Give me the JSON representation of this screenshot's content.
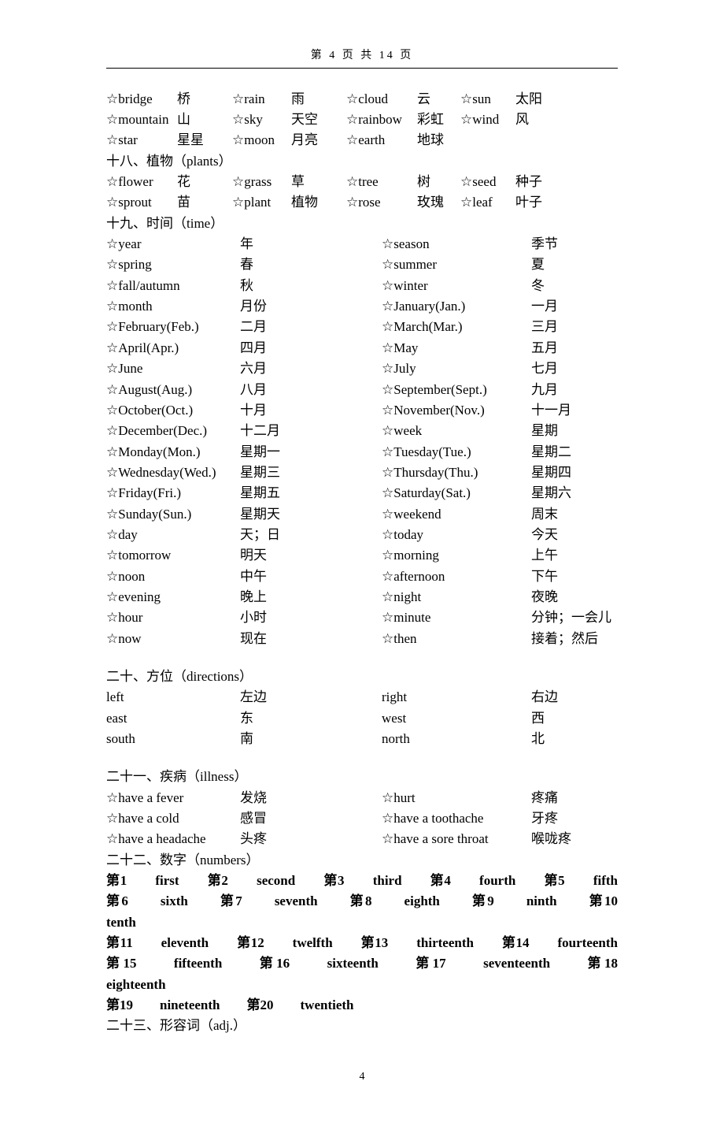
{
  "header": "第 4 页 共 14 页",
  "footer": "4",
  "nature": [
    {
      "en": "☆bridge",
      "zh": "桥",
      "en2": "☆rain",
      "zh2": "雨",
      "en3": "☆cloud",
      "zh3": "云",
      "en4": "☆sun",
      "zh4": "太阳"
    },
    {
      "en": "☆mountain",
      "zh": "山",
      "en2": "☆sky",
      "zh2": "天空",
      "en3": "☆rainbow",
      "zh3": "彩虹",
      "en4": "☆wind",
      "zh4": "风"
    },
    {
      "en": "☆star",
      "zh": "星星",
      "en2": "☆moon",
      "zh2": "月亮",
      "en3": "☆earth",
      "zh3": "地球",
      "en4": "",
      "zh4": ""
    }
  ],
  "section18_title": "十八、植物（plants）",
  "plants": [
    {
      "en": "☆flower",
      "zh": "花",
      "en2": "☆grass",
      "zh2": "草",
      "en3": "☆tree",
      "zh3": "树",
      "en4": "☆seed",
      "zh4": "种子"
    },
    {
      "en": "☆sprout",
      "zh": "苗",
      "en2": "☆plant",
      "zh2": "植物",
      "en3": "☆rose",
      "zh3": "玫瑰",
      "en4": "☆leaf",
      "zh4": "叶子"
    }
  ],
  "section19_title": "十九、时间（time）",
  "time": [
    {
      "l_en": "☆year",
      "l_zh": "年",
      "r_en": "☆season",
      "r_zh": "季节"
    },
    {
      "l_en": "☆spring",
      "l_zh": "春",
      "r_en": "☆summer",
      "r_zh": "夏"
    },
    {
      "l_en": "☆fall/autumn",
      "l_zh": "秋",
      "r_en": "☆winter",
      "r_zh": "冬"
    },
    {
      "l_en": "☆month",
      "l_zh": "月份",
      "r_en": "☆January(Jan.)",
      "r_zh": "一月"
    },
    {
      "l_en": "☆February(Feb.)",
      "l_zh": "二月",
      "r_en": "☆March(Mar.)",
      "r_zh": "三月"
    },
    {
      "l_en": "☆April(Apr.)",
      "l_zh": "四月",
      "r_en": "☆May",
      "r_zh": "五月"
    },
    {
      "l_en": "☆June",
      "l_zh": "六月",
      "r_en": "☆July",
      "r_zh": "七月"
    },
    {
      "l_en": "☆August(Aug.)",
      "l_zh": "八月",
      "r_en": "☆September(Sept.)",
      "r_zh": "九月"
    },
    {
      "l_en": "☆October(Oct.)",
      "l_zh": "十月",
      "r_en": "☆November(Nov.)",
      "r_zh": "十一月"
    },
    {
      "l_en": "☆December(Dec.)",
      "l_zh": "十二月",
      "r_en": "☆week",
      "r_zh": "星期"
    },
    {
      "l_en": "☆Monday(Mon.)",
      "l_zh": "星期一",
      "r_en": "☆Tuesday(Tue.)",
      "r_zh": "星期二"
    },
    {
      "l_en": "☆Wednesday(Wed.)",
      "l_zh": "星期三",
      "r_en": "☆Thursday(Thu.)",
      "r_zh": "星期四"
    },
    {
      "l_en": "☆Friday(Fri.)",
      "l_zh": "星期五",
      "r_en": "☆Saturday(Sat.)",
      "r_zh": "星期六"
    },
    {
      "l_en": "☆Sunday(Sun.)",
      "l_zh": "星期天",
      "r_en": "☆weekend",
      "r_zh": "周末"
    },
    {
      "l_en": "☆day",
      "l_zh": "天；日",
      "r_en": "☆today",
      "r_zh": "今天"
    },
    {
      "l_en": "☆tomorrow",
      "l_zh": "明天",
      "r_en": "☆morning",
      "r_zh": "上午"
    },
    {
      "l_en": "☆noon",
      "l_zh": "中午",
      "r_en": "☆afternoon",
      "r_zh": "下午"
    },
    {
      "l_en": "☆evening",
      "l_zh": "晚上",
      "r_en": "☆night",
      "r_zh": "夜晚"
    },
    {
      "l_en": "☆hour",
      "l_zh": "小时",
      "r_en": "☆minute",
      "r_zh": "分钟；一会儿"
    },
    {
      "l_en": "☆now",
      "l_zh": "现在",
      "r_en": "☆then",
      "r_zh": "接着；然后"
    }
  ],
  "section20_title": "二十、方位（directions）",
  "directions": [
    {
      "l_en": "left",
      "l_zh": "左边",
      "r_en": "right",
      "r_zh": "右边"
    },
    {
      "l_en": "east",
      "l_zh": "东",
      "r_en": "west",
      "r_zh": "西"
    },
    {
      "l_en": "south",
      "l_zh": "南",
      "r_en": "north",
      "r_zh": "北"
    }
  ],
  "section21_title": "二十一、疾病（illness）",
  "illness": [
    {
      "l_en": "☆have a fever",
      "l_zh": "发烧",
      "r_en": "☆hurt",
      "r_zh": "疼痛"
    },
    {
      "l_en": "☆have a cold",
      "l_zh": "感冒",
      "r_en": "☆have a toothache",
      "r_zh": "牙疼"
    },
    {
      "l_en": "☆have a headache",
      "l_zh": "头疼",
      "r_en": "☆have a sore throat",
      "r_zh": "喉咙疼"
    }
  ],
  "section22_title": "二十二、数字（numbers）",
  "numbers": [
    "第1　　first　　第2　　second　　第3　　third　　第4　　fourth　　第5　　fifth",
    "第6　　sixth　　第7　　seventh　　第8　　eighth　　第9　　ninth　　第10　　tenth",
    "第11　　eleventh　　第12　　twelfth　　第13　　thirteenth　　第14　　fourteenth",
    "第15　　fifteenth　　第16　　sixteenth　　第17　　seventeenth　　第18　　eighteenth",
    "第19　　nineteenth　　第20　　twentieth"
  ],
  "section23_title": "二十三、形容词（adj.）"
}
